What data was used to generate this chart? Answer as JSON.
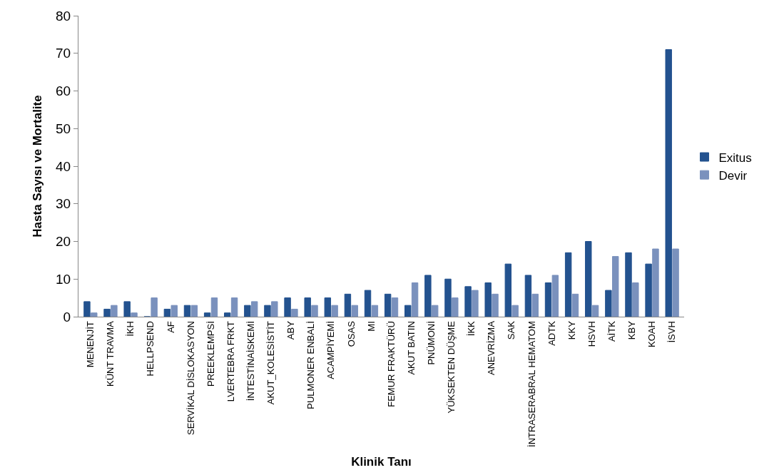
{
  "chart_data": {
    "type": "bar",
    "xlabel": "Klinik Tanı",
    "ylabel": "Hasta Sayısı ve Mortalite",
    "categories": [
      "MENENJİT",
      "KÜNT TRAVMA",
      "İKH",
      "HELLPSEND",
      "AF",
      "SERVİKAL DİSLOKASYON",
      "PREEKLEMPSİ",
      "LVERTEBRA FRKT",
      "İNTESTİNAİSKEMİ",
      "AKUT_KOLESİSTİT",
      "ABY",
      "PULMONER ENBALİ",
      "ACAMPİYEMİ",
      "OSAS",
      "MI",
      "FEMUR FRAKTÜRÜ",
      "AKUT BATIN",
      "PNÜMONİ",
      "YÜKSEKTEN DÜŞME",
      "İKK",
      "ANEVRİZMA",
      "SAK",
      "İNTRASERABRAL HEMATOM",
      "ADTK",
      "KKY",
      "HSVH",
      "AİTK",
      "KBY",
      "KOAH",
      "İSVH"
    ],
    "series": [
      {
        "name": "Exitus",
        "color": "#23528f",
        "values": [
          4,
          2,
          4,
          0,
          2,
          3,
          1,
          1,
          3,
          3,
          5,
          5,
          5,
          6,
          7,
          6,
          3,
          11,
          10,
          8,
          9,
          14,
          11,
          9,
          17,
          20,
          7,
          17,
          14,
          71
        ]
      },
      {
        "name": "Devir",
        "color": "#7a91bd",
        "values": [
          1,
          3,
          1,
          5,
          3,
          3,
          5,
          5,
          4,
          4,
          2,
          3,
          3,
          3,
          3,
          5,
          9,
          3,
          5,
          7,
          6,
          3,
          6,
          11,
          6,
          3,
          16,
          9,
          18,
          18
        ]
      }
    ],
    "ylim": [
      0,
      80
    ],
    "yticks": [
      0,
      10,
      20,
      30,
      40,
      50,
      60,
      70,
      80
    ],
    "legend": "right"
  }
}
